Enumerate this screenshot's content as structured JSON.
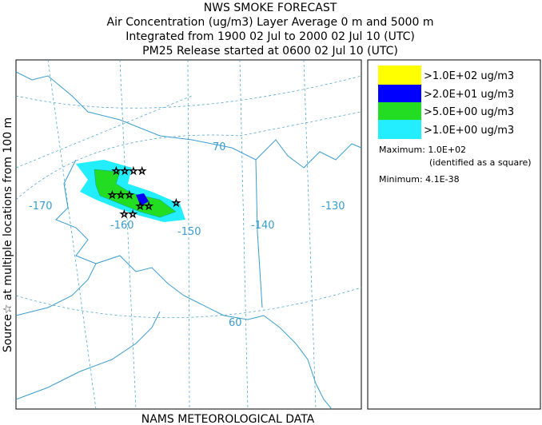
{
  "header": {
    "lines": [
      "NWS SMOKE FORECAST",
      "Air Concentration (ug/m3) Layer Average    0 m and  5000 m",
      "Integrated from 1900 02 Jul to 2000 02 Jul 10 (UTC)",
      "PM25 Release started at 0600 02 Jul 10 (UTC)"
    ]
  },
  "side_label": "Source☆  at multiple locations   from   100 m",
  "footer": "NAMS METEOROLOGICAL DATA",
  "map": {
    "graticule_labels": [
      "-170",
      "-160",
      "-150",
      "-140",
      "-130",
      "70",
      "60"
    ]
  },
  "legend": {
    "items": [
      {
        "label": ">1.0E+02 ug/m3",
        "color": "#ffff00"
      },
      {
        "label": ">2.0E+01 ug/m3",
        "color": "#0000ff"
      },
      {
        "label": ">5.0E+00 ug/m3",
        "color": "#22dd22"
      },
      {
        "label": ">1.0E+00 ug/m3",
        "color": "#22eeff"
      }
    ],
    "maximum": "Maximum: 1.0E+02",
    "max_note": "(identified as a square)",
    "minimum": "Minimum: 4.1E-38"
  }
}
